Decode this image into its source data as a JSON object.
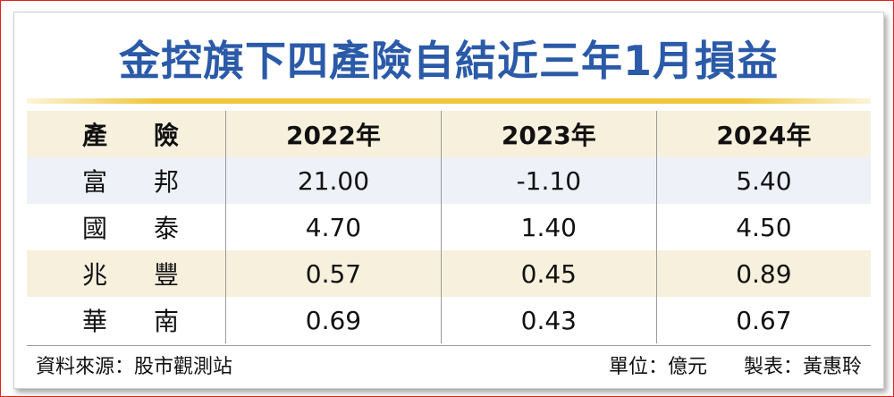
{
  "title": "金控旗下四產險自結近三年1月損益",
  "table": {
    "header": {
      "name_a": "產",
      "name_b": "險",
      "years": [
        "2022年",
        "2023年",
        "2024年"
      ]
    },
    "rows": [
      {
        "name_a": "富",
        "name_b": "邦",
        "values": [
          "21.00",
          "-1.10",
          "5.40"
        ]
      },
      {
        "name_a": "國",
        "name_b": "泰",
        "values": [
          "4.70",
          "1.40",
          "4.50"
        ]
      },
      {
        "name_a": "兆",
        "name_b": "豐",
        "values": [
          "0.57",
          "0.45",
          "0.89"
        ]
      },
      {
        "name_a": "華",
        "name_b": "南",
        "values": [
          "0.69",
          "0.43",
          "0.67"
        ]
      }
    ]
  },
  "footer": {
    "source": "資料來源：股市觀測站",
    "unit": "單位：億元",
    "maker": "製表：黃惠聆"
  },
  "colors": {
    "title": "#2a5aa8",
    "rule": "#f0c73c",
    "shade_warm": "#f7f0dd",
    "shade_cool": "#eef1f7",
    "frame": "#d9271d"
  }
}
